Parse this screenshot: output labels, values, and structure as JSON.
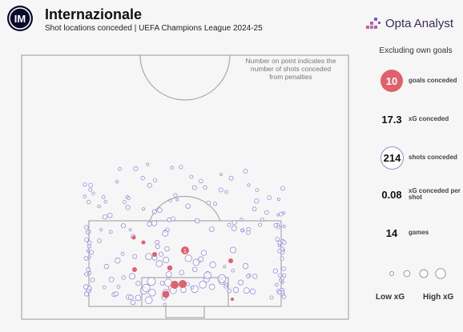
{
  "header": {
    "title": "Internazionale",
    "subtitle": "Shot locations conceded | UEFA Champions League 2024-25",
    "brand": "Opta Analyst"
  },
  "note": "Number on point indicates the number of shots conceded from penalties",
  "sidebar": {
    "heading": "Excluding own goals",
    "stats": [
      {
        "value": "10",
        "label": "goals conceded",
        "style": "red-circle"
      },
      {
        "value": "17.3",
        "label": "xG conceded",
        "style": "plain"
      },
      {
        "value": "214",
        "label": "shots conceded",
        "style": "purple-circle"
      },
      {
        "value": "0.08",
        "label": "xG conceded per shot",
        "style": "plain"
      },
      {
        "value": "14",
        "label": "games",
        "style": "plain"
      }
    ],
    "legend": {
      "low": "Low xG",
      "high": "High xG"
    }
  },
  "colors": {
    "goal": "#e0616b",
    "shot": "#9b8bd8",
    "pitch_line": "#9a9a9a"
  },
  "penalty_count": "1"
}
